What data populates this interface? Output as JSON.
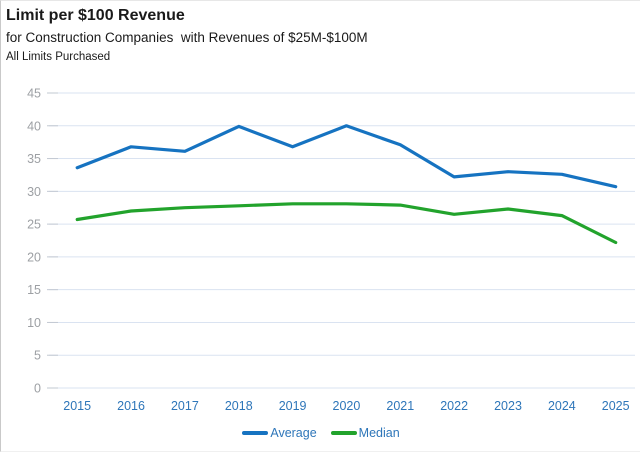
{
  "header": {
    "title": "Limit per $100 Revenue",
    "subtitle": "for Construction Companies  with Revenues of $25M-$100M",
    "note": "All Limits Purchased"
  },
  "chart_data": {
    "type": "line",
    "title": "Limit per $100 Revenue",
    "subtitle": "for Construction Companies with Revenues of $25M-$100M",
    "note": "All Limits Purchased",
    "x": [
      2015,
      2016,
      2017,
      2018,
      2019,
      2020,
      2021,
      2022,
      2023,
      2024,
      2025
    ],
    "series": [
      {
        "name": "Average",
        "color": "#1673c1",
        "values": [
          33.6,
          36.8,
          36.1,
          39.9,
          36.8,
          40.0,
          37.1,
          32.2,
          33.0,
          32.6,
          30.7
        ]
      },
      {
        "name": "Median",
        "color": "#22a32c",
        "values": [
          25.7,
          27.0,
          27.5,
          27.8,
          28.1,
          28.1,
          27.9,
          26.5,
          27.3,
          26.3,
          22.2
        ]
      }
    ],
    "xlabel": "",
    "ylabel": "",
    "ylim": [
      0,
      45
    ],
    "ytick_step": 5,
    "grid": true,
    "legend_position": "bottom-center"
  },
  "style": {
    "gridline_color": "#dae3f1",
    "tick_color": "#c2c8d2",
    "y_label_color": "#9da0a4",
    "x_label_color": "#2e76b9",
    "legend_text_color": "#2e76b9",
    "average_color": "#1673c1",
    "median_color": "#22a32c"
  }
}
